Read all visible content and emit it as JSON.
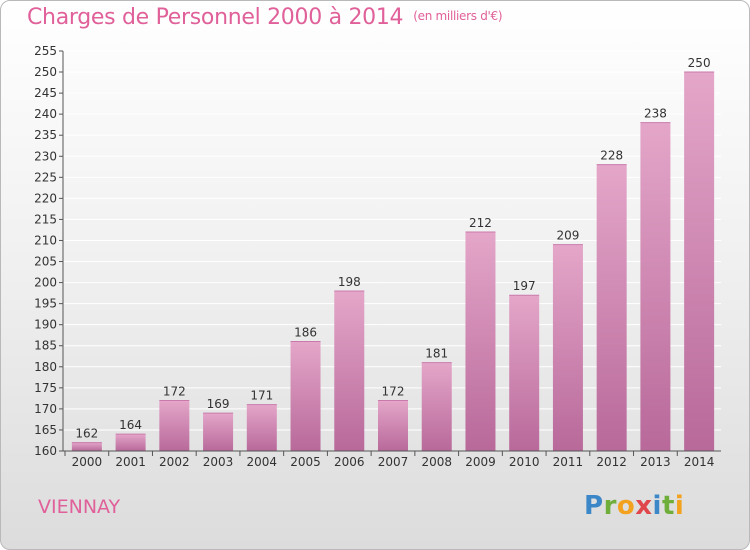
{
  "header": {
    "title": "Charges de Personnel 2000 à 2014",
    "unit": "(en milliers d'€)"
  },
  "footer": {
    "commune": "VIENNAY",
    "logo": {
      "letters": [
        "P",
        "r",
        "o",
        "x",
        "i",
        "t",
        "i"
      ],
      "colors": [
        "#3b87c7",
        "#6fae3a",
        "#f2a21f",
        "#e0474c",
        "#3b87c7",
        "#6fae3a",
        "#f2a21f"
      ]
    }
  },
  "colors": {
    "bar_top": "#e4a6c9",
    "bar_bottom": "#b8699a",
    "grid": "#ffffff",
    "axis": "#555555",
    "accent": "#e0609a"
  },
  "chart_data": {
    "type": "bar",
    "title": "Charges de Personnel 2000 à 2014",
    "subtitle": "(en milliers d'€)",
    "xlabel": "",
    "ylabel": "",
    "categories": [
      "2000",
      "2001",
      "2002",
      "2003",
      "2004",
      "2005",
      "2006",
      "2007",
      "2008",
      "2009",
      "2010",
      "2011",
      "2012",
      "2013",
      "2014"
    ],
    "values": [
      162,
      164,
      172,
      169,
      171,
      186,
      198,
      172,
      181,
      212,
      197,
      209,
      228,
      238,
      250
    ],
    "ylim": [
      160,
      255
    ],
    "yticks": [
      160,
      165,
      170,
      175,
      180,
      185,
      190,
      195,
      200,
      205,
      210,
      215,
      220,
      225,
      230,
      235,
      240,
      245,
      250,
      255
    ],
    "grid": true,
    "data_labels": true
  }
}
